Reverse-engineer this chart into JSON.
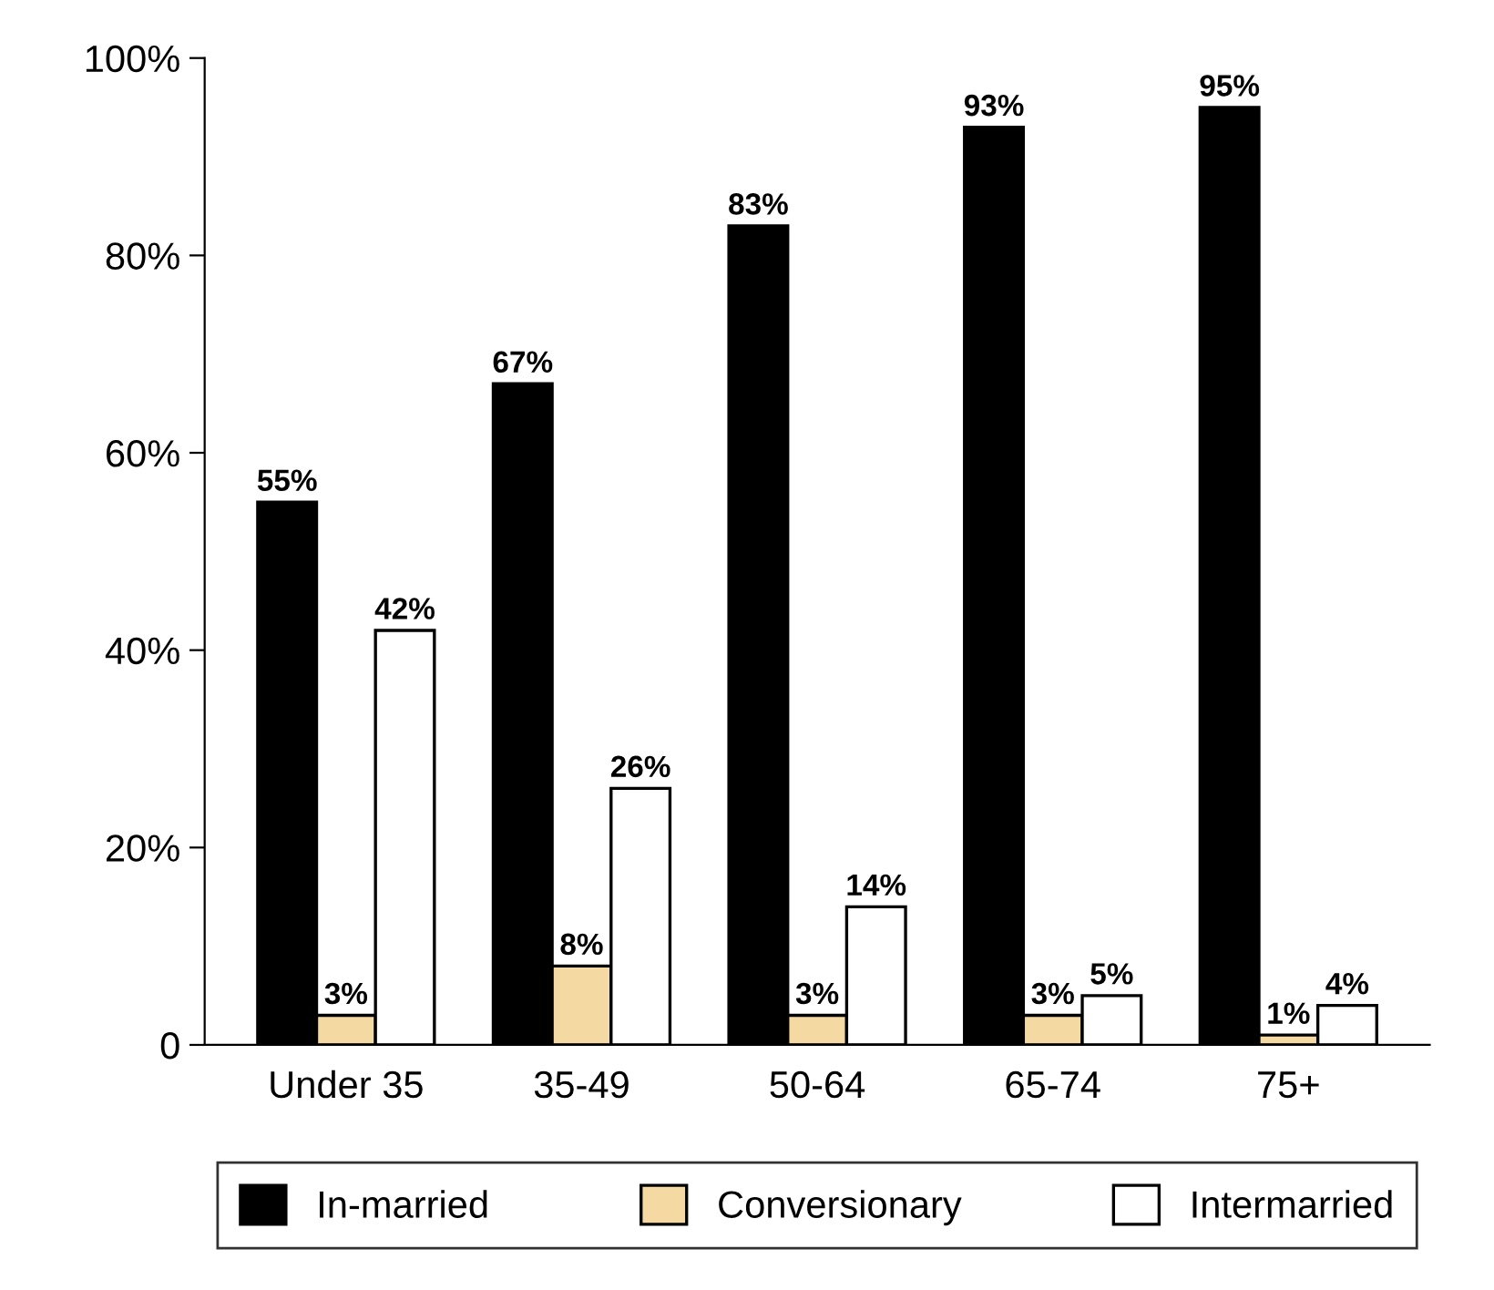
{
  "chart_data": {
    "type": "bar",
    "categories": [
      "Under 35",
      "35-49",
      "50-64",
      "65-74",
      "75+"
    ],
    "series": [
      {
        "name": "In-married",
        "color": "#000000",
        "values": [
          55,
          67,
          83,
          93,
          95
        ],
        "value_labels": [
          "55%",
          "67%",
          "83%",
          "93%",
          "95%"
        ]
      },
      {
        "name": "Conversionary",
        "color": "#f5d9a3",
        "values": [
          3,
          8,
          3,
          3,
          1
        ],
        "value_labels": [
          "3%",
          "8%",
          "3%",
          "3%",
          "1%"
        ]
      },
      {
        "name": "Intermarried",
        "color": "#ffffff",
        "values": [
          42,
          26,
          14,
          5,
          4
        ],
        "value_labels": [
          "42%",
          "26%",
          "14%",
          "5%",
          "4%"
        ]
      }
    ],
    "ylim": [
      0,
      100
    ],
    "yticks": [
      0,
      {
        "value": 20,
        "label": "20%"
      },
      {
        "value": 40,
        "label": "40%"
      },
      {
        "value": 60,
        "label": "60%"
      },
      {
        "value": 80,
        "label": "80%"
      },
      {
        "value": 100,
        "label": "100%"
      }
    ],
    "legend": "bottom",
    "grid": false
  }
}
